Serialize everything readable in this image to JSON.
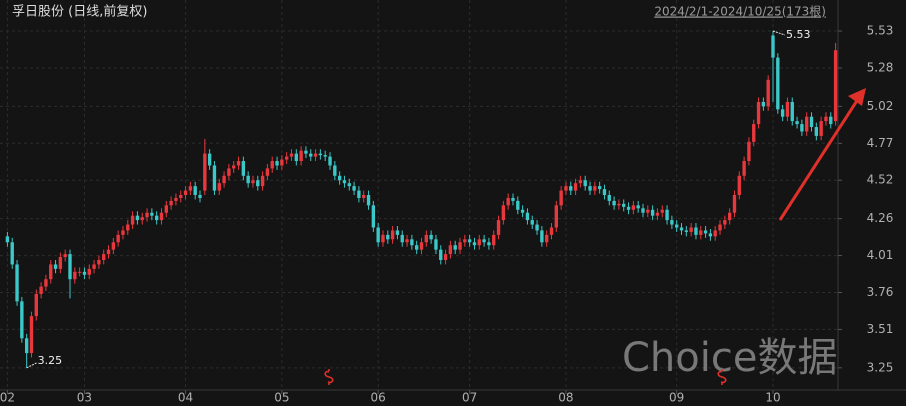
{
  "chart_data": {
    "type": "candlestick",
    "title": "孚日股份 (日线,前复权)",
    "subtitle": "2024/2/1-2024/10/25(173根)",
    "watermark": "Choice数据",
    "up_color": "#e8383d",
    "down_color": "#3cc8c8",
    "grid": true,
    "ylim": [
      3.1,
      5.74
    ],
    "yticks": [
      5.53,
      5.28,
      5.02,
      4.77,
      4.52,
      4.26,
      4.01,
      3.76,
      3.51,
      3.25
    ],
    "xticks": [
      {
        "value": 0,
        "label": "02"
      },
      {
        "value": 16,
        "label": "03"
      },
      {
        "value": 37,
        "label": "04"
      },
      {
        "value": 57,
        "label": "05"
      },
      {
        "value": 77,
        "label": "06"
      },
      {
        "value": 96,
        "label": "07"
      },
      {
        "value": 116,
        "label": "08"
      },
      {
        "value": 139,
        "label": "09"
      },
      {
        "value": 159,
        "label": "10"
      }
    ],
    "max_index": 159,
    "min_index": 4,
    "open": [
      4.14,
      4.1,
      3.95,
      3.7,
      3.45,
      3.35,
      3.6,
      3.75,
      3.8,
      3.85,
      3.95,
      3.92,
      4.0,
      4.02,
      3.85,
      3.9,
      3.9,
      3.88,
      3.92,
      3.95,
      3.98,
      4.02,
      4.05,
      4.1,
      4.15,
      4.18,
      4.22,
      4.28,
      4.25,
      4.27,
      4.3,
      4.28,
      4.25,
      4.3,
      4.35,
      4.38,
      4.4,
      4.42,
      4.45,
      4.48,
      4.42,
      4.45,
      4.7,
      4.62,
      4.45,
      4.5,
      4.55,
      4.6,
      4.62,
      4.65,
      4.55,
      4.5,
      4.52,
      4.48,
      4.55,
      4.6,
      4.65,
      4.62,
      4.66,
      4.68,
      4.7,
      4.65,
      4.72,
      4.7,
      4.68,
      4.7,
      4.69,
      4.68,
      4.62,
      4.55,
      4.52,
      4.5,
      4.48,
      4.45,
      4.4,
      4.42,
      4.35,
      4.2,
      4.1,
      4.15,
      4.12,
      4.18,
      4.15,
      4.1,
      4.12,
      4.08,
      4.05,
      4.1,
      4.15,
      4.12,
      4.05,
      3.98,
      4.02,
      4.08,
      4.05,
      4.1,
      4.12,
      4.1,
      4.08,
      4.12,
      4.1,
      4.08,
      4.15,
      4.25,
      4.35,
      4.4,
      4.38,
      4.32,
      4.3,
      4.25,
      4.22,
      4.18,
      4.1,
      4.15,
      4.2,
      4.35,
      4.45,
      4.48,
      4.45,
      4.5,
      4.52,
      4.48,
      4.45,
      4.48,
      4.46,
      4.42,
      4.38,
      4.35,
      4.36,
      4.34,
      4.32,
      4.35,
      4.33,
      4.3,
      4.32,
      4.28,
      4.3,
      4.32,
      4.25,
      4.22,
      4.2,
      4.18,
      4.17,
      4.2,
      4.15,
      4.18,
      4.16,
      4.14,
      4.18,
      4.22,
      4.25,
      4.3,
      4.42,
      4.55,
      4.65,
      4.78,
      4.9,
      5.05,
      5.02,
      5.5,
      5.35,
      5.0,
      4.95,
      5.05,
      4.92,
      4.9,
      4.85,
      4.95,
      4.88,
      4.82,
      4.92,
      4.95,
      4.92
    ],
    "high": [
      4.17,
      4.13,
      3.98,
      3.73,
      3.48,
      3.63,
      3.78,
      3.83,
      3.88,
      3.98,
      3.98,
      4.03,
      4.05,
      4.05,
      3.93,
      3.93,
      3.93,
      3.95,
      3.98,
      4.01,
      4.05,
      4.08,
      4.13,
      4.18,
      4.21,
      4.25,
      4.31,
      4.31,
      4.3,
      4.33,
      4.33,
      4.31,
      4.33,
      4.38,
      4.41,
      4.43,
      4.45,
      4.48,
      4.51,
      4.51,
      4.45,
      4.8,
      4.73,
      4.65,
      4.53,
      4.58,
      4.63,
      4.65,
      4.68,
      4.68,
      4.58,
      4.55,
      4.55,
      4.58,
      4.63,
      4.68,
      4.68,
      4.69,
      4.71,
      4.73,
      4.73,
      4.75,
      4.75,
      4.73,
      4.73,
      4.73,
      4.72,
      4.71,
      4.65,
      4.58,
      4.55,
      4.53,
      4.51,
      4.48,
      4.45,
      4.45,
      4.38,
      4.23,
      4.18,
      4.18,
      4.21,
      4.21,
      4.18,
      4.15,
      4.15,
      4.11,
      4.13,
      4.18,
      4.18,
      4.15,
      4.08,
      4.05,
      4.11,
      4.11,
      4.13,
      4.15,
      4.15,
      4.13,
      4.15,
      4.15,
      4.13,
      4.18,
      4.28,
      4.38,
      4.43,
      4.43,
      4.41,
      4.35,
      4.33,
      4.28,
      4.25,
      4.21,
      4.18,
      4.23,
      4.38,
      4.48,
      4.51,
      4.51,
      4.53,
      4.55,
      4.55,
      4.51,
      4.51,
      4.51,
      4.49,
      4.45,
      4.41,
      4.39,
      4.39,
      4.37,
      4.38,
      4.38,
      4.36,
      4.35,
      4.35,
      4.33,
      4.35,
      4.35,
      4.28,
      4.25,
      4.23,
      4.21,
      4.23,
      4.23,
      4.21,
      4.21,
      4.19,
      4.21,
      4.25,
      4.28,
      4.33,
      4.45,
      4.58,
      4.68,
      4.81,
      4.93,
      5.08,
      5.08,
      5.23,
      5.53,
      5.38,
      5.03,
      5.08,
      5.08,
      4.95,
      4.93,
      4.98,
      4.98,
      4.91,
      4.95,
      4.98,
      4.98,
      5.45
    ],
    "low": [
      4.07,
      3.92,
      3.67,
      3.42,
      3.25,
      3.32,
      3.57,
      3.72,
      3.77,
      3.82,
      3.89,
      3.89,
      3.97,
      3.72,
      3.82,
      3.87,
      3.85,
      3.85,
      3.89,
      3.92,
      3.95,
      3.99,
      4.02,
      4.07,
      4.12,
      4.15,
      4.19,
      4.22,
      4.22,
      4.24,
      4.25,
      4.22,
      4.22,
      4.27,
      4.32,
      4.35,
      4.37,
      4.39,
      4.42,
      4.39,
      4.37,
      4.42,
      4.59,
      4.42,
      4.42,
      4.47,
      4.52,
      4.57,
      4.59,
      4.52,
      4.47,
      4.47,
      4.45,
      4.45,
      4.52,
      4.57,
      4.59,
      4.59,
      4.63,
      4.65,
      4.62,
      4.62,
      4.67,
      4.65,
      4.65,
      4.66,
      4.65,
      4.59,
      4.52,
      4.49,
      4.47,
      4.45,
      4.42,
      4.37,
      4.37,
      4.32,
      4.17,
      4.07,
      4.07,
      4.09,
      4.09,
      4.12,
      4.07,
      4.07,
      4.05,
      4.02,
      4.02,
      4.07,
      4.09,
      4.02,
      3.95,
      3.95,
      3.99,
      4.02,
      4.02,
      4.07,
      4.07,
      4.05,
      4.05,
      4.07,
      4.05,
      4.05,
      4.12,
      4.22,
      4.32,
      4.35,
      4.29,
      4.27,
      4.22,
      4.19,
      4.15,
      4.07,
      4.07,
      4.12,
      4.17,
      4.32,
      4.42,
      4.42,
      4.42,
      4.47,
      4.45,
      4.42,
      4.42,
      4.43,
      4.39,
      4.35,
      4.32,
      4.32,
      4.31,
      4.29,
      4.29,
      4.3,
      4.27,
      4.27,
      4.25,
      4.25,
      4.27,
      4.22,
      4.19,
      4.17,
      4.15,
      4.14,
      4.14,
      4.12,
      4.12,
      4.13,
      4.11,
      4.11,
      4.15,
      4.19,
      4.22,
      4.27,
      4.39,
      4.52,
      4.62,
      4.75,
      4.87,
      4.99,
      4.99,
      5.05,
      4.97,
      4.92,
      4.92,
      4.89,
      4.87,
      4.82,
      4.82,
      4.85,
      4.79,
      4.79,
      4.89,
      4.87,
      4.89
    ],
    "close": [
      4.1,
      3.95,
      3.7,
      3.45,
      3.35,
      3.6,
      3.75,
      3.8,
      3.85,
      3.95,
      3.92,
      4.0,
      4.02,
      3.85,
      3.9,
      3.9,
      3.88,
      3.92,
      3.95,
      3.98,
      4.02,
      4.05,
      4.1,
      4.15,
      4.18,
      4.22,
      4.28,
      4.25,
      4.27,
      4.3,
      4.28,
      4.25,
      4.3,
      4.35,
      4.38,
      4.4,
      4.42,
      4.45,
      4.48,
      4.42,
      4.4,
      4.7,
      4.62,
      4.45,
      4.5,
      4.55,
      4.6,
      4.62,
      4.65,
      4.55,
      4.5,
      4.52,
      4.48,
      4.55,
      4.6,
      4.65,
      4.62,
      4.66,
      4.68,
      4.7,
      4.65,
      4.72,
      4.7,
      4.68,
      4.7,
      4.69,
      4.68,
      4.62,
      4.55,
      4.52,
      4.5,
      4.48,
      4.45,
      4.4,
      4.42,
      4.35,
      4.2,
      4.1,
      4.15,
      4.12,
      4.18,
      4.15,
      4.1,
      4.12,
      4.08,
      4.05,
      4.1,
      4.15,
      4.12,
      4.05,
      3.98,
      4.02,
      4.08,
      4.05,
      4.1,
      4.12,
      4.1,
      4.08,
      4.12,
      4.1,
      4.08,
      4.15,
      4.25,
      4.35,
      4.4,
      4.38,
      4.32,
      4.3,
      4.25,
      4.22,
      4.18,
      4.1,
      4.15,
      4.2,
      4.35,
      4.45,
      4.48,
      4.45,
      4.5,
      4.52,
      4.48,
      4.45,
      4.48,
      4.46,
      4.42,
      4.38,
      4.35,
      4.36,
      4.34,
      4.32,
      4.35,
      4.33,
      4.3,
      4.32,
      4.28,
      4.3,
      4.32,
      4.25,
      4.22,
      4.2,
      4.18,
      4.17,
      4.2,
      4.15,
      4.18,
      4.16,
      4.14,
      4.18,
      4.22,
      4.25,
      4.3,
      4.42,
      4.55,
      4.65,
      4.78,
      4.9,
      5.05,
      5.02,
      5.2,
      5.35,
      5.0,
      4.95,
      5.05,
      4.92,
      4.9,
      4.85,
      4.95,
      4.88,
      4.82,
      4.92,
      4.95,
      4.9,
      5.4
    ]
  }
}
